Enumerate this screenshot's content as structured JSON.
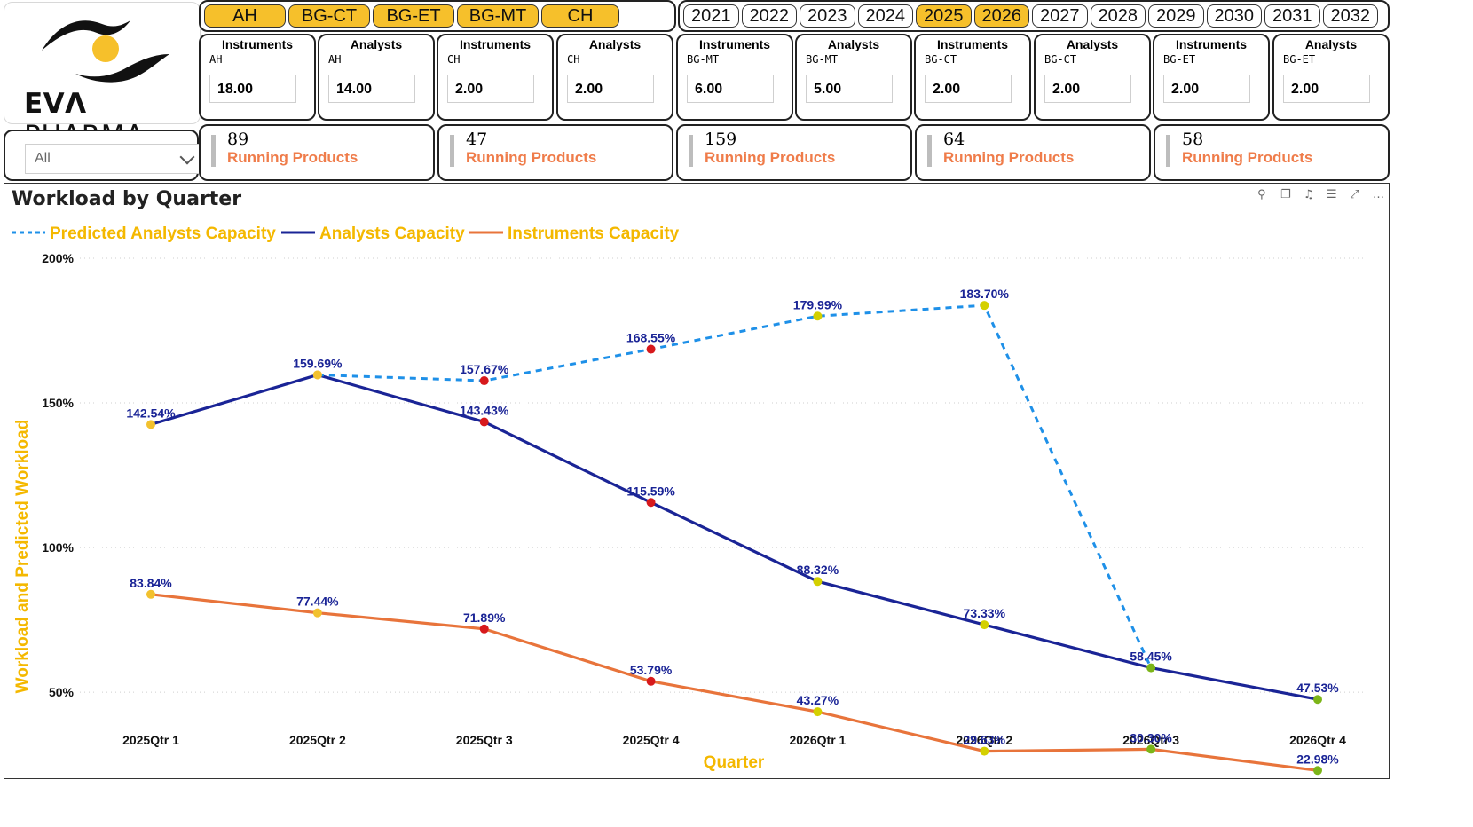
{
  "brand": {
    "logo_text_bold": "EVΛ",
    "logo_text": " PHARMA"
  },
  "filter": {
    "selected": "All"
  },
  "category_slicer": [
    {
      "label": "AH",
      "selected": true
    },
    {
      "label": "BG-CT",
      "selected": true
    },
    {
      "label": "BG-ET",
      "selected": true
    },
    {
      "label": "BG-MT",
      "selected": true
    },
    {
      "label": "CH",
      "selected": true
    }
  ],
  "year_slicer": [
    {
      "label": "2021",
      "selected": false
    },
    {
      "label": "2022",
      "selected": false
    },
    {
      "label": "2023",
      "selected": false
    },
    {
      "label": "2024",
      "selected": false
    },
    {
      "label": "2025",
      "selected": true
    },
    {
      "label": "2026",
      "selected": true
    },
    {
      "label": "2027",
      "selected": false
    },
    {
      "label": "2028",
      "selected": false
    },
    {
      "label": "2029",
      "selected": false
    },
    {
      "label": "2030",
      "selected": false
    },
    {
      "label": "2031",
      "selected": false
    },
    {
      "label": "2032",
      "selected": false
    }
  ],
  "kpi_cards": [
    {
      "title": "Instruments",
      "sub": "AH",
      "value": "18.00"
    },
    {
      "title": "Analysts",
      "sub": "AH",
      "value": "14.00"
    },
    {
      "title": "Instruments",
      "sub": "CH",
      "value": "2.00"
    },
    {
      "title": "Analysts",
      "sub": "CH",
      "value": "2.00"
    },
    {
      "title": "Instruments",
      "sub": "BG-MT",
      "value": "6.00"
    },
    {
      "title": "Analysts",
      "sub": "BG-MT",
      "value": "5.00"
    },
    {
      "title": "Instruments",
      "sub": "BG-CT",
      "value": "2.00"
    },
    {
      "title": "Analysts",
      "sub": "BG-CT",
      "value": "2.00"
    },
    {
      "title": "Instruments",
      "sub": "BG-ET",
      "value": "2.00"
    },
    {
      "title": "Analysts",
      "sub": "BG-ET",
      "value": "2.00"
    }
  ],
  "running_products": [
    {
      "count": "89",
      "label": "Running Products"
    },
    {
      "count": "47",
      "label": "Running Products"
    },
    {
      "count": "159",
      "label": "Running Products"
    },
    {
      "count": "64",
      "label": "Running Products"
    },
    {
      "count": "58",
      "label": "Running Products"
    }
  ],
  "colors": {
    "accent": "#f6c02b",
    "predicted": "#1e90e8",
    "analysts": "#1a2496",
    "instruments": "#e8743b",
    "axis_title": "#f4b800",
    "label": "#1a2496",
    "running_label": "#ef7c4a",
    "marker_red": "#d7191c",
    "marker_yellow": "#d4d000",
    "marker_green": "#7cb518",
    "marker_gold": "#f2c12e"
  },
  "toolbar_icons": [
    "pin-icon",
    "copy-icon",
    "bell-icon",
    "filter-icon",
    "expand-icon",
    "more-icon"
  ],
  "chart_data": {
    "type": "line",
    "title": "Workload by Quarter",
    "xlabel": "Quarter",
    "ylabel": "Workload and Predicted Workload",
    "legend_position": "top-left",
    "grid": true,
    "ylim": [
      20,
      200
    ],
    "y_ticks": [
      50,
      100,
      150,
      200
    ],
    "y_tick_labels": [
      "50%",
      "100%",
      "150%",
      "200%"
    ],
    "categories": [
      "2025Qtr 1",
      "2025Qtr 2",
      "2025Qtr 3",
      "2025Qtr 4",
      "2026Qtr 1",
      "2026Qtr 2",
      "2026Qtr 3",
      "2026Qtr 4"
    ],
    "series": [
      {
        "name": "Predicted Analysts Capacity",
        "style": "dashed",
        "values": [
          null,
          159.69,
          157.67,
          168.55,
          179.99,
          183.7,
          58.45,
          null
        ],
        "labels": [
          "",
          "",
          "157.67%",
          "168.55%",
          "179.99%",
          "183.70%",
          "",
          ""
        ],
        "markers": [
          null,
          "gold",
          "red",
          "red",
          "yellow",
          "yellow",
          null,
          null
        ]
      },
      {
        "name": "Analysts Capacity",
        "style": "solid",
        "values": [
          142.54,
          159.69,
          143.43,
          115.59,
          88.32,
          73.33,
          58.45,
          47.53
        ],
        "labels": [
          "142.54%",
          "159.69%",
          "143.43%",
          "115.59%",
          "88.32%",
          "73.33%",
          "58.45%",
          "47.53%"
        ],
        "markers": [
          "gold",
          "gold",
          "red",
          "red",
          "yellow",
          "yellow",
          "green",
          "green"
        ]
      },
      {
        "name": "Instruments Capacity",
        "style": "solid",
        "values": [
          83.84,
          77.44,
          71.89,
          53.79,
          43.27,
          29.63,
          30.3,
          22.98
        ],
        "labels": [
          "83.84%",
          "77.44%",
          "71.89%",
          "53.79%",
          "43.27%",
          "29.63%",
          "30.30%",
          "22.98%"
        ],
        "markers": [
          "gold",
          "gold",
          "red",
          "red",
          "yellow",
          "yellow",
          "green",
          "green"
        ]
      }
    ]
  }
}
